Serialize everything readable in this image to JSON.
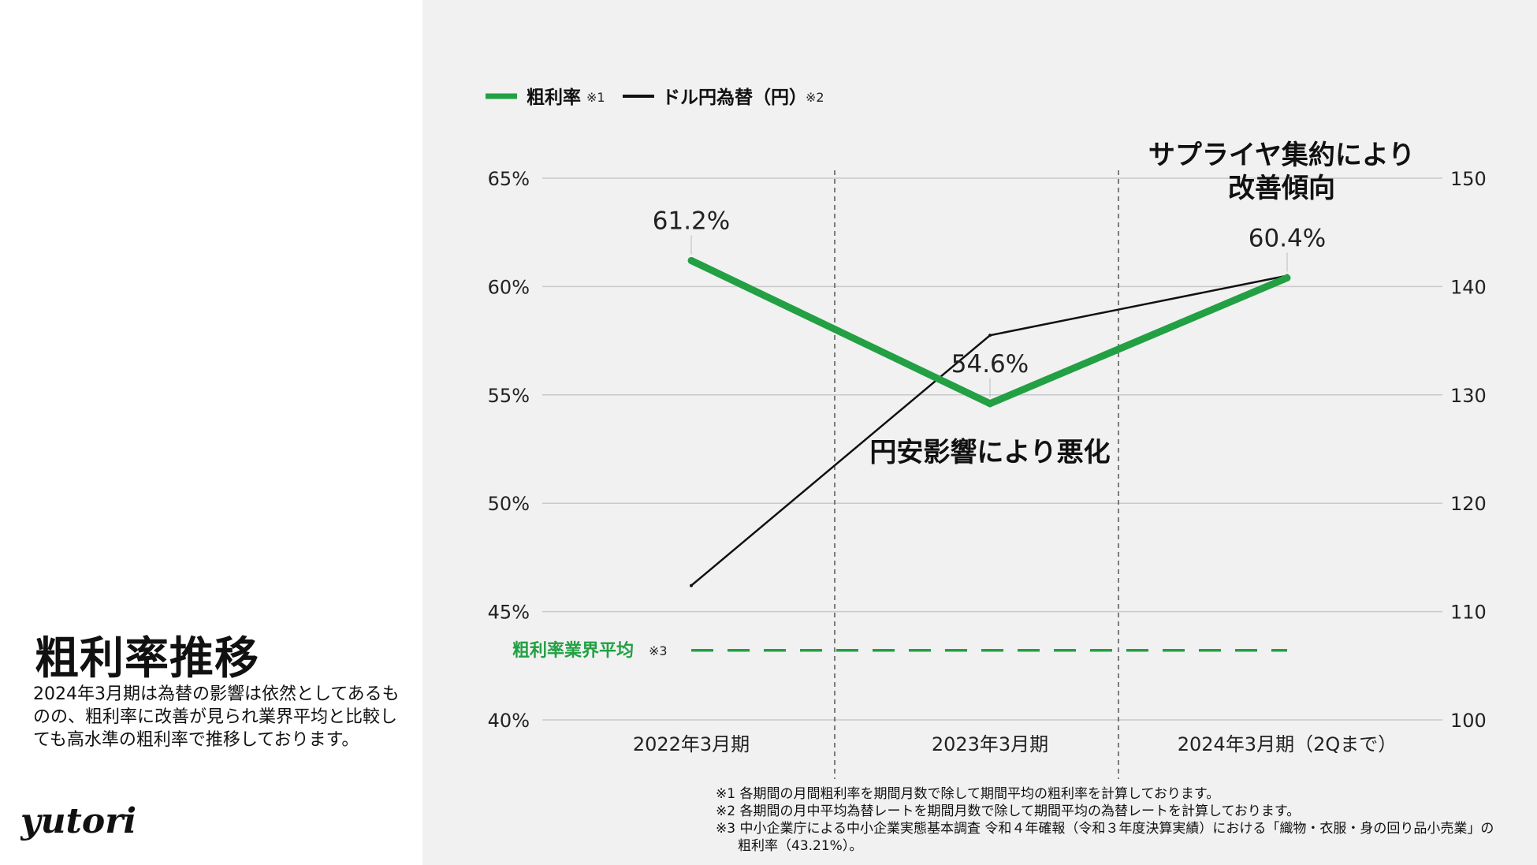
{
  "slide": {
    "title": "粗利率推移",
    "description": "2024年3月期は為替の影響は依然としてあるものの、粗利率に改善が見られ業界平均と比較しても高水準の粗利率で推移しております。",
    "logo_text": "yutori"
  },
  "footnotes": [
    "※1 各期間の月間粗利率を期間月数で除して期間平均の粗利率を計算しております。",
    "※2 各期間の月中平均為替レートを期間月数で除して期間平均の為替レートを計算しております。",
    "※3 中小企業庁による中小企業実態基本調査 令和４年確報（令和３年度決算実績）における「織物・衣服・身の回り品小売業」の粗利率（43.21%）。"
  ],
  "chart_data": {
    "type": "line",
    "categories": [
      "2022年3月期",
      "2023年3月期",
      "2024年3月期（2Qまで）"
    ],
    "left_axis": {
      "min": 40,
      "max": 65,
      "ticks": [
        40,
        45,
        50,
        55,
        60,
        65
      ],
      "tick_suffix": "%"
    },
    "right_axis": {
      "min": 100,
      "max": 150,
      "ticks": [
        100,
        110,
        120,
        130,
        140,
        150
      ]
    },
    "grid": true,
    "legend_position": "top-left",
    "series": [
      {
        "name": "粗利率",
        "legend_note": "※1",
        "axis": "left",
        "values": [
          61.2,
          54.6,
          60.4
        ],
        "data_labels": [
          "61.2%",
          "54.6%",
          "60.4%"
        ],
        "color": "#22a043"
      },
      {
        "name": "ドル円為替（円）",
        "legend_note": "※2",
        "axis": "right",
        "values": [
          112.4,
          135.5,
          141.0
        ],
        "color": "#111111"
      }
    ],
    "reference_line": {
      "label": "粗利率業界平均",
      "note": "※3",
      "value": 43.21,
      "color": "#22a043"
    },
    "annotations": [
      {
        "text": "円安影響により悪化",
        "period": 1
      },
      {
        "text": "サプライヤ集約により改善傾向",
        "period": 2
      }
    ]
  }
}
